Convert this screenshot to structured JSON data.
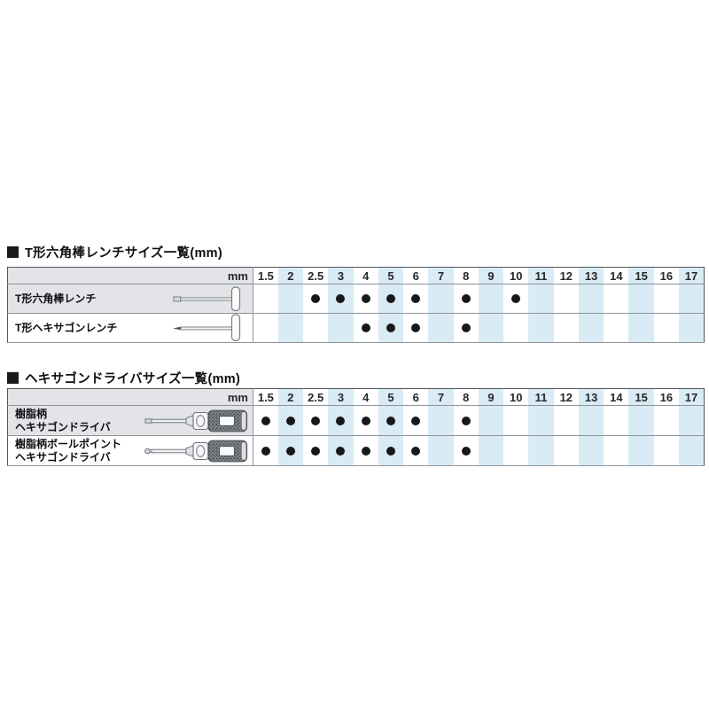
{
  "colors": {
    "stripe_blue": "#d9ebf5",
    "header_gray": "#e2e4e8",
    "row_label_gray": "#e2e4e8",
    "dot_black": "#17181a",
    "border_outer": "#53565b",
    "border_inner": "#8f939a",
    "title_text": "#0d0e10"
  },
  "icons": [
    "black-square-bullet-icon",
    "t-hex-wrench-icon",
    "t-hexagon-wrench-icon",
    "hexagon-driver-icon",
    "ballpoint-hexagon-driver-icon",
    "availability-dot"
  ],
  "chart_data": [
    {
      "type": "table",
      "title": "T形六角棒レンチサイズ一覧(mm)",
      "unit_label": "mm",
      "columns": [
        "1.5",
        "2",
        "2.5",
        "3",
        "4",
        "5",
        "6",
        "7",
        "8",
        "9",
        "10",
        "11",
        "12",
        "13",
        "14",
        "15",
        "16",
        "17"
      ],
      "rows": [
        {
          "label_lines": [
            "T形六角棒レンチ"
          ],
          "icon": "t-hex-wrench",
          "available_sizes": [
            "2.5",
            "3",
            "4",
            "5",
            "6",
            "8",
            "10"
          ]
        },
        {
          "label_lines": [
            "T形ヘキサゴンレンチ"
          ],
          "icon": "t-hexagon-wrench",
          "available_sizes": [
            "4",
            "5",
            "6",
            "8"
          ]
        }
      ]
    },
    {
      "type": "table",
      "title": "ヘキサゴンドライバサイズ一覧(mm)",
      "unit_label": "mm",
      "columns": [
        "1.5",
        "2",
        "2.5",
        "3",
        "4",
        "5",
        "6",
        "7",
        "8",
        "9",
        "10",
        "11",
        "12",
        "13",
        "14",
        "15",
        "16",
        "17"
      ],
      "rows": [
        {
          "label_lines": [
            "樹脂柄",
            "ヘキサゴンドライバ"
          ],
          "icon": "hexagon-driver",
          "available_sizes": [
            "1.5",
            "2",
            "2.5",
            "3",
            "4",
            "5",
            "6",
            "8"
          ]
        },
        {
          "label_lines": [
            "樹脂柄ボールポイント",
            "ヘキサゴンドライバ"
          ],
          "icon": "ballpoint-hexagon-driver",
          "available_sizes": [
            "1.5",
            "2",
            "2.5",
            "3",
            "4",
            "5",
            "6",
            "8"
          ]
        }
      ]
    }
  ]
}
